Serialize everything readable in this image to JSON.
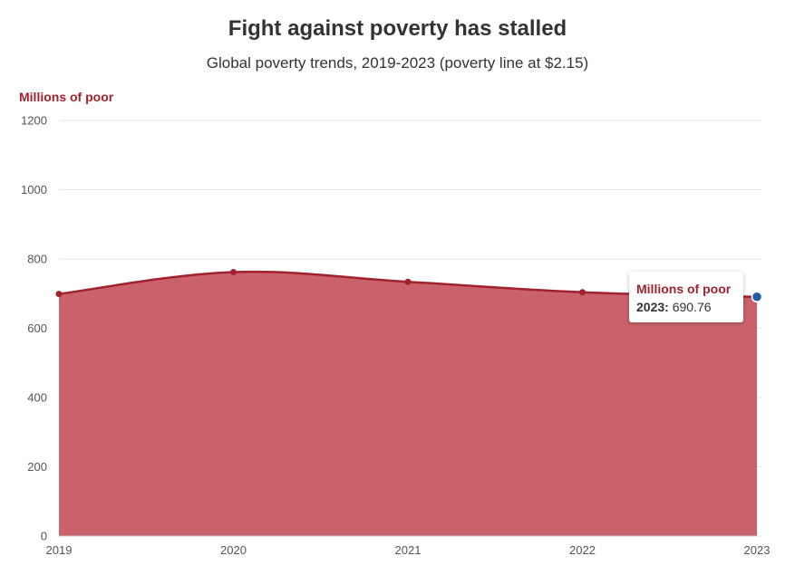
{
  "header": {
    "title": "Fight against poverty has stalled",
    "subtitle": "Global poverty trends, 2019-2023 (poverty line at $2.15)"
  },
  "chart_data": {
    "type": "area",
    "title": "Fight against poverty has stalled",
    "subtitle": "Global poverty trends, 2019-2023 (poverty line at $2.15)",
    "xlabel": "",
    "ylabel": "Millions of poor",
    "x": [
      "2019",
      "2020",
      "2021",
      "2022",
      "2023"
    ],
    "series": [
      {
        "name": "Millions of poor",
        "values": [
          699,
          762,
          734,
          704,
          690.76
        ]
      }
    ],
    "ylim": [
      0,
      1200
    ],
    "yticks": [
      "0",
      "200",
      "400",
      "600",
      "800",
      "1000",
      "1200"
    ],
    "grid": true,
    "legend": "none",
    "colors": {
      "area_fill": "#c9626a",
      "line": "#a1222d",
      "marker": "#a1222d",
      "highlight_marker": "#1f5fa8",
      "grid": "#e6e6e6"
    }
  },
  "tooltip": {
    "series": "Millions of poor",
    "year": "2023:",
    "value": "690.76"
  }
}
